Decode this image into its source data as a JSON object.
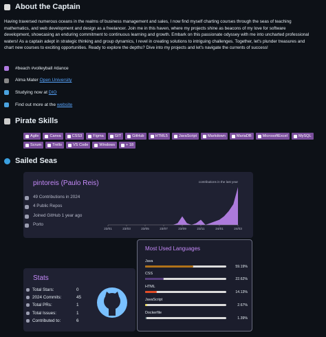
{
  "about": {
    "title": "About the Captain",
    "paragraph": "Having traversed numerous oceans in the realms of business management and sales, I now find myself charting courses through the seas of teaching mathematics, and web development and design as a freelancer. Join me in this haven, where my projects shine as beacons of my love for software development, showcasing an enduring commitment to continuous learning and growth. Embark on this passionate odyssey with me into uncharted professional waters! As a captain adept in strategic thinking and group dynamics, I revel in creating solutions to intriguing challenges. Together, let's plunder treasures and chart new courses to exciting opportunities. Ready to explore the depths? Dive into my projects and let's navigate the currents of success!",
    "items": [
      {
        "text": "#beach #volleyball #dance"
      },
      {
        "text": "Alma Mater ",
        "link": "Open University"
      },
      {
        "text": "Studying now at ",
        "link": "DIO"
      },
      {
        "text": "Find out more at the ",
        "link": "website"
      }
    ]
  },
  "skills": {
    "title": "Pirate Skills",
    "badges": [
      "Agile",
      "Canva",
      "CSS3",
      "Figma",
      "GIT",
      "GitHub",
      "HTML5",
      "JavaScript",
      "Markdown",
      "MariaDB",
      "MicrosoftExcel",
      "MySQL",
      "Scrum",
      "Trello",
      "VS Code",
      "Windows",
      "+ 18"
    ]
  },
  "seas": {
    "title": "Sailed Seas",
    "profile": {
      "name": "pintoreis (Paulo Reis)",
      "facts": [
        "49 Contributions in 2024",
        "4 Public Repos",
        "Joined GitHub 1 year ago",
        "Porto"
      ]
    },
    "chart_data": {
      "type": "area",
      "title": "contributions in the last year",
      "color": "#c58af9",
      "categories": [
        "23/01",
        null,
        null,
        null,
        "23/03",
        null,
        null,
        null,
        "23/05",
        null,
        null,
        null,
        "23/07",
        null,
        null,
        null,
        "23/09",
        null,
        null,
        null,
        "23/11",
        null,
        null,
        null,
        "24/01",
        null,
        null,
        null,
        "24/03"
      ],
      "values": [
        0,
        0,
        0,
        0,
        0,
        0,
        0,
        0,
        0,
        0,
        0,
        0,
        0,
        0,
        0,
        1,
        5,
        1,
        0,
        1,
        3,
        0,
        1,
        2,
        3,
        5,
        8,
        12,
        22
      ]
    },
    "stats": {
      "title": "Stats",
      "rows": [
        {
          "label": "Total Stars:",
          "value": "0"
        },
        {
          "label": "2024 Commits:",
          "value": "45"
        },
        {
          "label": "Total PRs:",
          "value": "1"
        },
        {
          "label": "Total Issues:",
          "value": "1"
        },
        {
          "label": "Contributed to:",
          "value": "6"
        }
      ]
    },
    "languages": {
      "title": "Most Used Languages",
      "items": [
        {
          "name": "Java",
          "percent": {
            "value": 59.19,
            "label": "59.19%"
          },
          "color": "#b07219"
        },
        {
          "name": "CSS",
          "percent": {
            "value": 22.62,
            "label": "22.62%"
          },
          "color": "#563d7c"
        },
        {
          "name": "HTML",
          "percent": {
            "value": 14.13,
            "label": "14.13%"
          },
          "color": "#e34c26"
        },
        {
          "name": "JavaScript",
          "percent": {
            "value": 2.67,
            "label": "2.67%"
          },
          "color": "#f1e05a"
        },
        {
          "name": "Dockerfile",
          "percent": {
            "value": 1.39,
            "label": "1.39%"
          },
          "color": "#384d54"
        }
      ]
    }
  }
}
